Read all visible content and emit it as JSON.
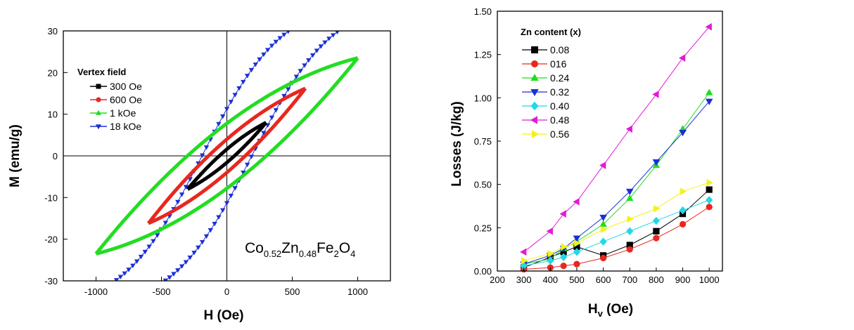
{
  "chart_data": [
    {
      "type": "line",
      "xlabel": "H (Oe)",
      "ylabel": "M (emu/g)",
      "xlim": [
        -1250,
        1250
      ],
      "ylim": [
        -30,
        30
      ],
      "xticks": [
        -1000,
        -500,
        0,
        500,
        1000
      ],
      "yticks": [
        -30,
        -20,
        -10,
        0,
        10,
        20,
        30
      ],
      "legend": {
        "title": "Vertex field",
        "placement": "top-left",
        "entries": [
          "300 Oe",
          "600 Oe",
          "1 kOe",
          "18 kOe"
        ]
      },
      "annotation": {
        "parts": [
          {
            "t": "Co",
            "sub": false
          },
          {
            "t": "0.52",
            "sub": true
          },
          {
            "t": "Zn",
            "sub": false
          },
          {
            "t": "0.48",
            "sub": true
          },
          {
            "t": "Fe",
            "sub": false
          },
          {
            "t": "2",
            "sub": true
          },
          {
            "t": "O",
            "sub": false
          },
          {
            "t": "4",
            "sub": true
          }
        ]
      },
      "series": [
        {
          "name": "300 Oe",
          "color": "#000000",
          "marker": "square",
          "vertex": 300,
          "mmax": 8,
          "mr": 1.6
        },
        {
          "name": "600 Oe",
          "color": "#e8271f",
          "marker": "circle",
          "vertex": 600,
          "mmax": 16.2,
          "mr": 4.0
        },
        {
          "name": "1 kOe",
          "color": "#22dd22",
          "marker": "triangle-up",
          "vertex": 1000,
          "mmax": 23.5,
          "mr": 7.8
        },
        {
          "name": "18 kOe",
          "color": "#1a2fd6",
          "marker": "triangle-down",
          "vertex": 18000,
          "mmax": 38,
          "mr": 11.5
        }
      ]
    },
    {
      "type": "line",
      "xlabel": "H",
      "xlabel_sub": "v",
      "xlabel_unit": " (Oe)",
      "ylabel": "Losses (J/kg)",
      "xlim": [
        200,
        1050
      ],
      "ylim": [
        0,
        1.5
      ],
      "xticks": [
        200,
        300,
        400,
        500,
        600,
        700,
        800,
        900,
        1000
      ],
      "yticks": [
        "0.00",
        "0.25",
        "0.50",
        "0.75",
        "1.00",
        "1.25",
        "1.50"
      ],
      "legend": {
        "title": "Zn content (x)",
        "placement": "top-left"
      },
      "x": [
        300,
        400,
        450,
        500,
        600,
        700,
        800,
        900,
        1000
      ],
      "series": [
        {
          "name": "0.08",
          "color": "#000000",
          "marker": "square",
          "values": [
            0.02,
            0.08,
            0.11,
            0.14,
            0.09,
            0.15,
            0.23,
            0.33,
            0.47
          ]
        },
        {
          "name": "016",
          "color": "#e8271f",
          "marker": "circle",
          "values": [
            0.01,
            0.02,
            0.03,
            0.04,
            0.075,
            0.125,
            0.19,
            0.27,
            0.37
          ]
        },
        {
          "name": "0.24",
          "color": "#22dd22",
          "marker": "triangle-up",
          "values": [
            0.04,
            0.07,
            0.13,
            0.17,
            0.27,
            0.42,
            0.61,
            0.82,
            1.03
          ]
        },
        {
          "name": "0.32",
          "color": "#1a2fd6",
          "marker": "triangle-down",
          "values": [
            0.04,
            0.09,
            0.13,
            0.19,
            0.31,
            0.46,
            0.63,
            0.8,
            0.98
          ]
        },
        {
          "name": "0.40",
          "color": "#22d8e6",
          "marker": "diamond",
          "values": [
            0.03,
            0.06,
            0.08,
            0.11,
            0.17,
            0.23,
            0.29,
            0.35,
            0.41
          ]
        },
        {
          "name": "0.48",
          "color": "#e21ad8",
          "marker": "triangle-left",
          "values": [
            0.11,
            0.23,
            0.33,
            0.4,
            0.61,
            0.82,
            1.02,
            1.23,
            1.41
          ]
        },
        {
          "name": "0.56",
          "color": "#f2f21a",
          "marker": "triangle-right",
          "values": [
            0.06,
            0.1,
            0.14,
            0.16,
            0.24,
            0.3,
            0.36,
            0.46,
            0.51
          ]
        }
      ]
    }
  ]
}
